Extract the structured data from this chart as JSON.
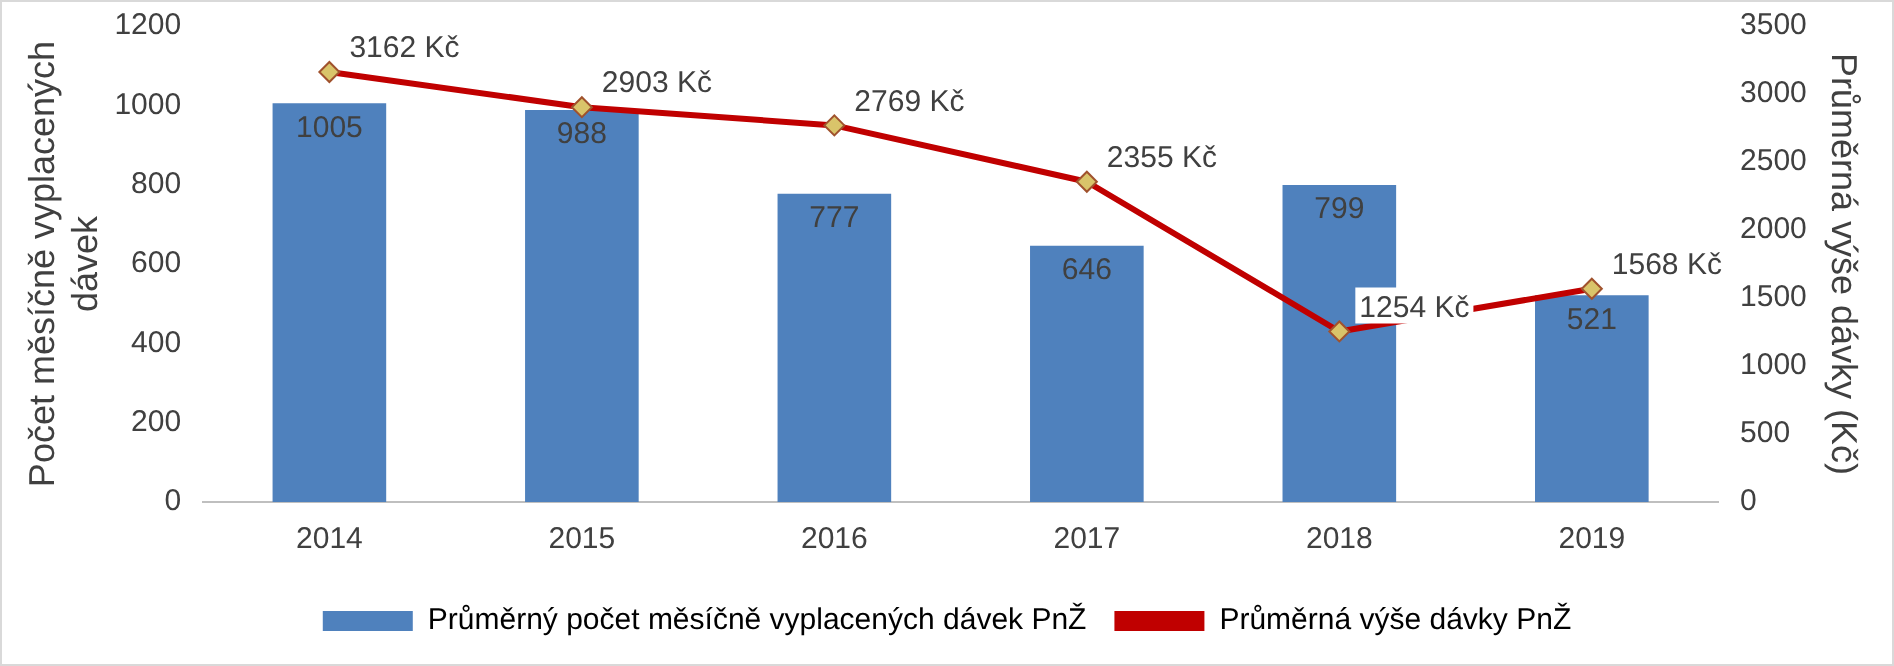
{
  "chart_data": {
    "type": "bar",
    "categories": [
      "2014",
      "2015",
      "2016",
      "2017",
      "2018",
      "2019"
    ],
    "ylabel": "Počet měsíčně vyplacených dávek",
    "y2label": "Průměrná výše dávky (Kč)",
    "ylim": [
      0,
      1200
    ],
    "yticks": [
      0,
      200,
      400,
      600,
      800,
      1000,
      1200
    ],
    "y2lim": [
      0,
      3500
    ],
    "y2ticks": [
      0,
      500,
      1000,
      1500,
      2000,
      2500,
      3000,
      3500
    ],
    "grid": false,
    "legend": "bottom",
    "series": [
      {
        "name": "Průměrný počet měsíčně vyplacených dávek PnŽ",
        "color": "#4f81bd",
        "values": [
          1005,
          988,
          777,
          646,
          799,
          521
        ],
        "value_labels": [
          "1005",
          "988",
          "777",
          "646",
          "799",
          "521"
        ]
      },
      {
        "name": "Průměrná výše dávky PnŽ",
        "type": "line",
        "axis": "y2",
        "color": "#c00000",
        "marker": "diamond",
        "values": [
          3162,
          2903,
          2769,
          2355,
          1254,
          1568
        ],
        "value_labels": [
          "3162 Kč",
          "2903 Kč",
          "2769 Kč",
          "2355 Kč",
          "1254 Kč",
          "1568 Kč"
        ]
      }
    ]
  }
}
